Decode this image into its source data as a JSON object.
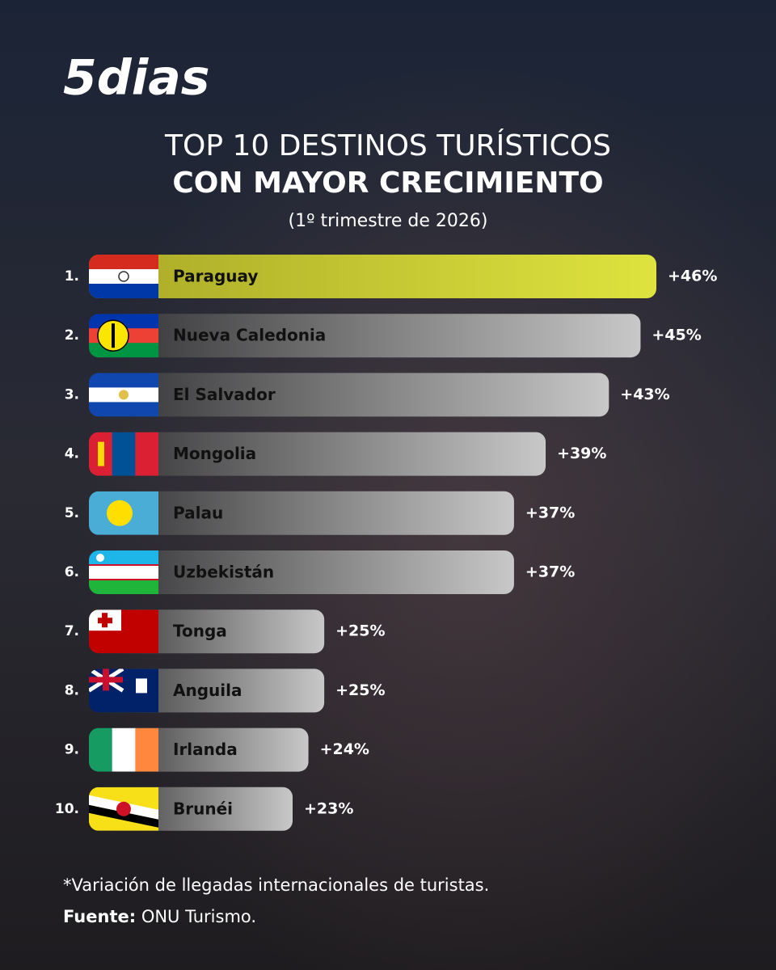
{
  "brand": "5dias",
  "chart_data": {
    "type": "bar",
    "orientation": "horizontal",
    "title": [
      "TOP 10 DESTINOS TURÍSTICOS",
      "CON MAYOR CRECIMIENTO"
    ],
    "subtitle": "(1º trimestre de 2026)",
    "ranks": [
      "1.",
      "2.",
      "3.",
      "4.",
      "5.",
      "6.",
      "7.",
      "8.",
      "9.",
      "10."
    ],
    "categories": [
      "Paraguay",
      "Nueva Caledonia",
      "El Salvador",
      "Mongolia",
      "Palau",
      "Uzbekistán",
      "Tonga",
      "Anguila",
      "Irlanda",
      "Brunéi"
    ],
    "values": [
      46,
      45,
      43,
      39,
      37,
      37,
      25,
      25,
      24,
      23
    ],
    "value_labels": [
      "+46%",
      "+45%",
      "+43%",
      "+39%",
      "+37%",
      "+37%",
      "+25%",
      "+25%",
      "+24%",
      "+23%"
    ],
    "highlight_color": "#dfe33e",
    "color": "#c8c8c8"
  },
  "footnote": "*Variación de llegadas internacionales de turistas.",
  "source_label": "Fuente:",
  "source": "ONU Turismo."
}
